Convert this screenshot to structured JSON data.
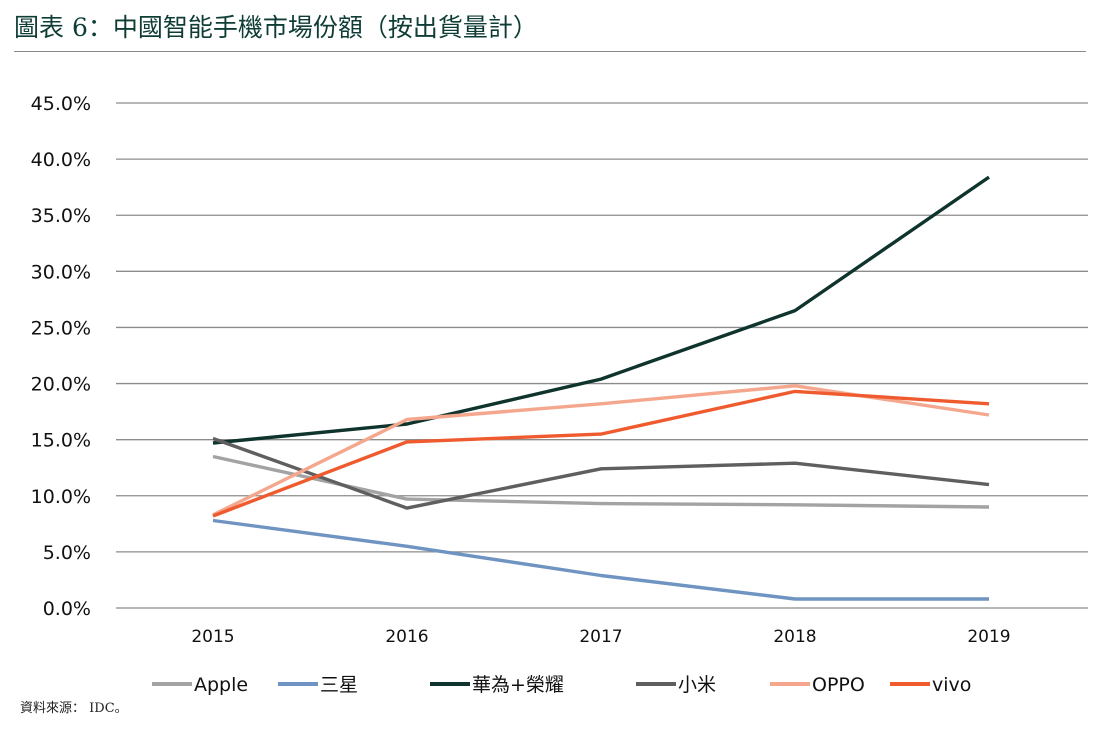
{
  "title": "圖表 6：中國智能手機市場份額（按出貨量計）",
  "source": "資料來源： IDC。",
  "chart_data": {
    "type": "line",
    "x": [
      "2015",
      "2016",
      "2017",
      "2018",
      "2019"
    ],
    "ylim": [
      0,
      45
    ],
    "y_ticks": [
      "0.0%",
      "5.0%",
      "10.0%",
      "15.0%",
      "20.0%",
      "25.0%",
      "30.0%",
      "35.0%",
      "40.0%",
      "45.0%"
    ],
    "grid": true,
    "legend_position": "bottom",
    "series": [
      {
        "name": "Apple",
        "color": "#a3a3a3",
        "values": [
          13.5,
          9.7,
          9.3,
          9.2,
          9.0
        ]
      },
      {
        "name": "三星",
        "color": "#6f94c2",
        "values": [
          7.8,
          5.5,
          2.9,
          0.8,
          0.8
        ]
      },
      {
        "name": "華為+榮耀",
        "color": "#0f332d",
        "values": [
          14.7,
          16.4,
          20.4,
          26.5,
          38.4
        ]
      },
      {
        "name": "小米",
        "color": "#5f5f5f",
        "values": [
          15.1,
          8.9,
          12.4,
          12.9,
          11.0
        ]
      },
      {
        "name": "OPPO",
        "color": "#f5a78e",
        "values": [
          8.3,
          16.8,
          18.2,
          19.8,
          17.2
        ]
      },
      {
        "name": "vivo",
        "color": "#ef5b2e",
        "values": [
          8.2,
          14.8,
          15.5,
          19.3,
          18.2
        ]
      }
    ]
  }
}
